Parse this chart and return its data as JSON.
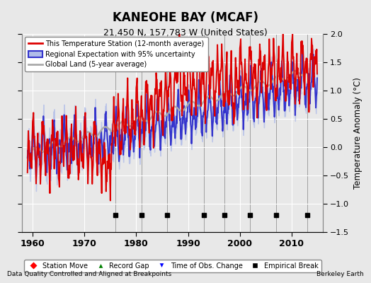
{
  "title": "KANEOHE BAY (MCAF)",
  "subtitle": "21.450 N, 157.783 W (United States)",
  "ylabel": "Temperature Anomaly (°C)",
  "xlabel_left": "Data Quality Controlled and Aligned at Breakpoints",
  "xlabel_right": "Berkeley Earth",
  "ylim": [
    -1.5,
    2.0
  ],
  "xlim": [
    1958,
    2016
  ],
  "yticks": [
    -1.5,
    -1.0,
    -0.5,
    0.0,
    0.5,
    1.0,
    1.5,
    2.0
  ],
  "xticks": [
    1960,
    1970,
    1980,
    1990,
    2000,
    2010
  ],
  "bg_color": "#e8e8e8",
  "plot_bg_color": "#e8e8e8",
  "grid_color": "#ffffff",
  "empirical_breaks": [
    1976,
    1981,
    1986,
    1993,
    1997,
    2002,
    2007,
    2013
  ],
  "legend1_labels": [
    "This Temperature Station (12-month average)",
    "Regional Expectation with 95% uncertainty",
    "Global Land (5-year average)"
  ],
  "legend2_labels": [
    "Station Move",
    "Record Gap",
    "Time of Obs. Change",
    "Empirical Break"
  ]
}
